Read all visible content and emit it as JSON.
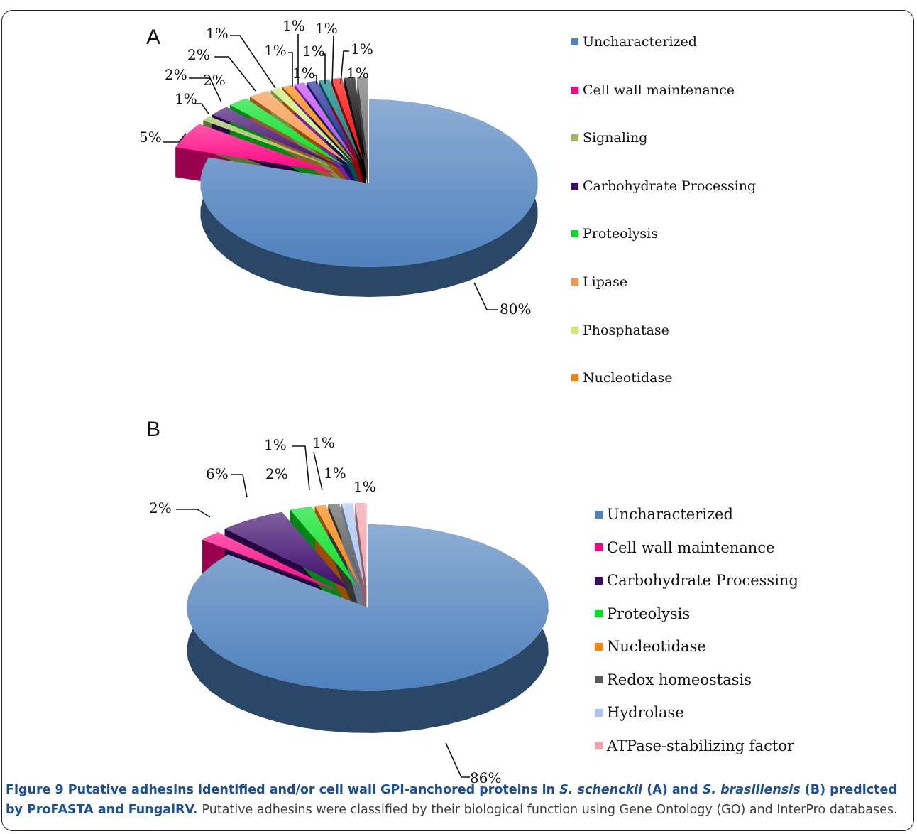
{
  "figure": {
    "caption": {
      "title_parts": [
        {
          "text": "Figure 9 Putative adhesins identified and/or cell wall GPI-anchored proteins in ",
          "italic": false
        },
        {
          "text": "S. schenckii",
          "italic": true
        },
        {
          "text": " (A) and ",
          "italic": false
        },
        {
          "text": "S. brasiliensis",
          "italic": true
        },
        {
          "text": " (B) predicted by ProFASTA and FungalRV.",
          "italic": false
        }
      ],
      "text": "Putative adhesins were classified by their biological function using Gene Ontology (GO) and InterPro databases."
    }
  },
  "chart_data": [
    {
      "panel": "A",
      "type": "pie",
      "style": "3d-exploded",
      "legend_position": "right",
      "legend": [
        {
          "label": "Uncharacterized",
          "color": "#4f81bd"
        },
        {
          "label": "Cell wall maintenance",
          "color": "#ff0080"
        },
        {
          "label": "Signaling",
          "color": "#9bbb59"
        },
        {
          "label": "Carbohydrate Processing",
          "color": "#3d0a6b"
        },
        {
          "label": "Proteolysis",
          "color": "#00e020"
        },
        {
          "label": "Lipase",
          "color": "#f79646"
        },
        {
          "label": "Phosphatase",
          "color": "#c6f070"
        },
        {
          "label": "Nucleotidase",
          "color": "#ff8000"
        }
      ],
      "slices": [
        {
          "value": 80,
          "label": "80%",
          "color": "#4f81bd"
        },
        {
          "value": 5,
          "label": "5%",
          "color": "#ff0080"
        },
        {
          "value": 1,
          "label": "1%",
          "color": "#9bbb59"
        },
        {
          "value": 2,
          "label": "2%",
          "color": "#3d0a6b"
        },
        {
          "value": 2,
          "label": "2%",
          "color": "#00e020"
        },
        {
          "value": 2,
          "label": "2%",
          "color": "#f79646"
        },
        {
          "value": 1,
          "label": "1%",
          "color": "#c6f070"
        },
        {
          "value": 1,
          "label": "1%",
          "color": "#ff8000"
        },
        {
          "value": 1,
          "label": "1%",
          "color": "#c040ff"
        },
        {
          "value": 1,
          "label": "1%",
          "color": "#20209a"
        },
        {
          "value": 1,
          "label": "1%",
          "color": "#008080"
        },
        {
          "value": 1,
          "label": "1%",
          "color": "#ff0000"
        },
        {
          "value": 1,
          "label": "1%",
          "color": "#000000"
        },
        {
          "value": 1,
          "label": "1%",
          "color": "#707070"
        }
      ]
    },
    {
      "panel": "B",
      "type": "pie",
      "style": "3d-exploded",
      "legend_position": "right",
      "legend": [
        {
          "label": "Uncharacterized",
          "color": "#4f81bd"
        },
        {
          "label": "Cell wall maintenance",
          "color": "#ff0080"
        },
        {
          "label": "Carbohydrate Processing",
          "color": "#3d0a6b"
        },
        {
          "label": "Proteolysis",
          "color": "#00e020"
        },
        {
          "label": "Nucleotidase",
          "color": "#ff8000"
        },
        {
          "label": "Redox homeostasis",
          "color": "#595959"
        },
        {
          "label": "Hydrolase",
          "color": "#a6c4f0"
        },
        {
          "label": "ATPase-stabilizing factor",
          "color": "#f0a0a8"
        }
      ],
      "slices": [
        {
          "value": 86,
          "label": "86%",
          "color": "#4f81bd"
        },
        {
          "value": 2,
          "label": "2%",
          "color": "#ff0080"
        },
        {
          "value": 6,
          "label": "6%",
          "color": "#3d0a6b"
        },
        {
          "value": 2,
          "label": "2%",
          "color": "#00e020"
        },
        {
          "value": 1,
          "label": "1%",
          "color": "#ff8000"
        },
        {
          "value": 1,
          "label": "1%",
          "color": "#595959"
        },
        {
          "value": 1,
          "label": "1%",
          "color": "#a6c4f0"
        },
        {
          "value": 1,
          "label": "1%",
          "color": "#f0a0a8"
        }
      ]
    }
  ]
}
